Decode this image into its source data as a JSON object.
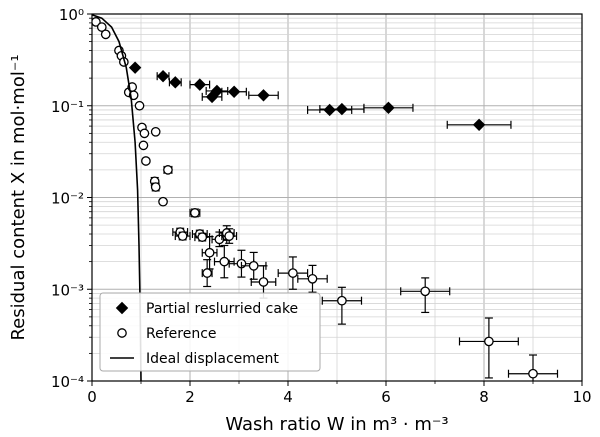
{
  "chart_data": {
    "type": "scatter",
    "xlabel": "Wash ratio W in m³ · m⁻³",
    "ylabel": "Residual content X in mol·mol⁻¹",
    "xlim": [
      0,
      10
    ],
    "ylim": [
      0.0001,
      1
    ],
    "yscale": "log",
    "grid": "on",
    "legend_position": "bottom-left",
    "x_ticks": [
      "0",
      "2",
      "4",
      "6",
      "8",
      "10"
    ],
    "y_ticks": [
      "10⁰",
      "10⁻¹",
      "10⁻²",
      "10⁻³",
      "10⁻⁴"
    ],
    "series": [
      {
        "name": "Partial reslurried cake",
        "marker": "diamond",
        "color": "#000000",
        "points": [
          {
            "x": 0.88,
            "y": 0.26,
            "xerr": 0.0
          },
          {
            "x": 1.45,
            "y": 0.21,
            "xerr": 0.12
          },
          {
            "x": 1.7,
            "y": 0.18,
            "xerr": 0.12
          },
          {
            "x": 2.2,
            "y": 0.17,
            "xerr": 0.2
          },
          {
            "x": 2.45,
            "y": 0.125,
            "xerr": 0.2
          },
          {
            "x": 2.55,
            "y": 0.145,
            "xerr": 0.22
          },
          {
            "x": 2.9,
            "y": 0.142,
            "xerr": 0.25
          },
          {
            "x": 3.5,
            "y": 0.13,
            "xerr": 0.3
          },
          {
            "x": 4.85,
            "y": 0.09,
            "xerr": 0.45
          },
          {
            "x": 5.1,
            "y": 0.092,
            "xerr": 0.45
          },
          {
            "x": 6.05,
            "y": 0.095,
            "xerr": 0.5
          },
          {
            "x": 7.9,
            "y": 0.062,
            "xerr": 0.65
          }
        ]
      },
      {
        "name": "Reference",
        "marker": "circle-open",
        "color": "#000000",
        "points": [
          {
            "x": 0.08,
            "y": 0.82,
            "xerr": 0.0,
            "yerr": [
              1.0,
              1.0
            ]
          },
          {
            "x": 0.2,
            "y": 0.72,
            "xerr": 0.0,
            "yerr": [
              1.0,
              1.0
            ]
          },
          {
            "x": 0.28,
            "y": 0.6,
            "xerr": 0.0,
            "yerr": [
              1.0,
              1.0
            ]
          },
          {
            "x": 0.55,
            "y": 0.4,
            "xerr": 0.0,
            "yerr": [
              1.0,
              1.0
            ]
          },
          {
            "x": 0.6,
            "y": 0.35,
            "xerr": 0.0,
            "yerr": [
              1.0,
              1.0
            ]
          },
          {
            "x": 0.65,
            "y": 0.3,
            "xerr": 0.0,
            "yerr": [
              1.0,
              1.0
            ]
          },
          {
            "x": 0.75,
            "y": 0.14,
            "xerr": 0.0,
            "yerr": [
              1.0,
              1.0
            ]
          },
          {
            "x": 0.82,
            "y": 0.16,
            "xerr": 0.0,
            "yerr": [
              1.0,
              1.0
            ]
          },
          {
            "x": 0.85,
            "y": 0.13,
            "xerr": 0.0,
            "yerr": [
              1.0,
              1.0
            ]
          },
          {
            "x": 0.97,
            "y": 0.1,
            "xerr": 0.0,
            "yerr": [
              1.0,
              1.0
            ]
          },
          {
            "x": 1.02,
            "y": 0.058,
            "xerr": 0.0,
            "yerr": [
              1.0,
              1.0
            ]
          },
          {
            "x": 1.07,
            "y": 0.05,
            "xerr": 0.0,
            "yerr": [
              1.0,
              1.0
            ]
          },
          {
            "x": 1.05,
            "y": 0.037,
            "xerr": 0.0,
            "yerr": [
              1.0,
              1.0
            ]
          },
          {
            "x": 1.1,
            "y": 0.025,
            "xerr": 0.0,
            "yerr": [
              1.0,
              1.0
            ]
          },
          {
            "x": 1.3,
            "y": 0.052,
            "xerr": 0.0,
            "yerr": [
              1.0,
              1.0
            ]
          },
          {
            "x": 1.55,
            "y": 0.02,
            "xerr": 0.08,
            "yerr": [
              1.0,
              1.0
            ]
          },
          {
            "x": 1.28,
            "y": 0.015,
            "xerr": 0.0,
            "yerr": [
              1.1,
              1.1
            ]
          },
          {
            "x": 1.3,
            "y": 0.013,
            "xerr": 0.0,
            "yerr": [
              1.1,
              1.1
            ]
          },
          {
            "x": 1.45,
            "y": 0.009,
            "xerr": 0.0,
            "yerr": [
              1.0,
              1.0
            ]
          },
          {
            "x": 1.8,
            "y": 0.0042,
            "xerr": 0.15,
            "yerr": [
              1.1,
              1.1
            ]
          },
          {
            "x": 1.85,
            "y": 0.0038,
            "xerr": 0.15,
            "yerr": [
              1.1,
              1.1
            ]
          },
          {
            "x": 2.1,
            "y": 0.0068,
            "xerr": 0.1,
            "yerr": [
              1.1,
              1.1
            ]
          },
          {
            "x": 2.2,
            "y": 0.004,
            "xerr": 0.15,
            "yerr": [
              1.1,
              1.1
            ]
          },
          {
            "x": 2.25,
            "y": 0.0037,
            "xerr": 0.15,
            "yerr": [
              1.1,
              1.1
            ]
          },
          {
            "x": 2.4,
            "y": 0.0025,
            "xerr": 0.15,
            "yerr": [
              1.5,
              1.5
            ]
          },
          {
            "x": 2.35,
            "y": 0.0015,
            "xerr": 0.1,
            "yerr": [
              1.4,
              1.4
            ]
          },
          {
            "x": 2.6,
            "y": 0.0035,
            "xerr": 0.15,
            "yerr": [
              1.2,
              1.2
            ]
          },
          {
            "x": 2.75,
            "y": 0.0041,
            "xerr": 0.15,
            "yerr": [
              1.2,
              1.2
            ]
          },
          {
            "x": 2.8,
            "y": 0.0038,
            "xerr": 0.15,
            "yerr": [
              1.2,
              1.2
            ]
          },
          {
            "x": 2.7,
            "y": 0.002,
            "xerr": 0.2,
            "yerr": [
              1.5,
              1.5
            ]
          },
          {
            "x": 3.05,
            "y": 0.0019,
            "xerr": 0.25,
            "yerr": [
              1.4,
              1.4
            ]
          },
          {
            "x": 3.3,
            "y": 0.0018,
            "xerr": 0.25,
            "yerr": [
              1.4,
              1.4
            ]
          },
          {
            "x": 3.5,
            "y": 0.0012,
            "xerr": 0.25,
            "yerr": [
              1.5,
              1.5
            ]
          },
          {
            "x": 4.1,
            "y": 0.0015,
            "xerr": 0.3,
            "yerr": [
              1.5,
              1.5
            ]
          },
          {
            "x": 4.5,
            "y": 0.0013,
            "xerr": 0.3,
            "yerr": [
              1.4,
              1.4
            ]
          },
          {
            "x": 5.1,
            "y": 0.00075,
            "xerr": 0.4,
            "yerr": [
              1.8,
              1.4
            ]
          },
          {
            "x": 6.8,
            "y": 0.00095,
            "xerr": 0.5,
            "yerr": [
              1.7,
              1.4
            ]
          },
          {
            "x": 8.1,
            "y": 0.00027,
            "xerr": 0.6,
            "yerr": [
              2.5,
              1.8
            ]
          },
          {
            "x": 9.0,
            "y": 0.00012,
            "xerr": 0.5,
            "yerr": [
              1.8,
              1.6
            ]
          }
        ]
      },
      {
        "name": "Ideal displacement",
        "type": "line",
        "color": "#000000",
        "x": [
          0.0,
          0.2,
          0.4,
          0.55,
          0.7,
          0.8,
          0.88,
          0.93,
          0.96,
          0.98,
          0.99,
          1.0
        ],
        "y": [
          0.98,
          0.9,
          0.72,
          0.5,
          0.26,
          0.12,
          0.04,
          0.012,
          0.003,
          0.0008,
          0.0003,
          0.0001
        ]
      }
    ]
  }
}
